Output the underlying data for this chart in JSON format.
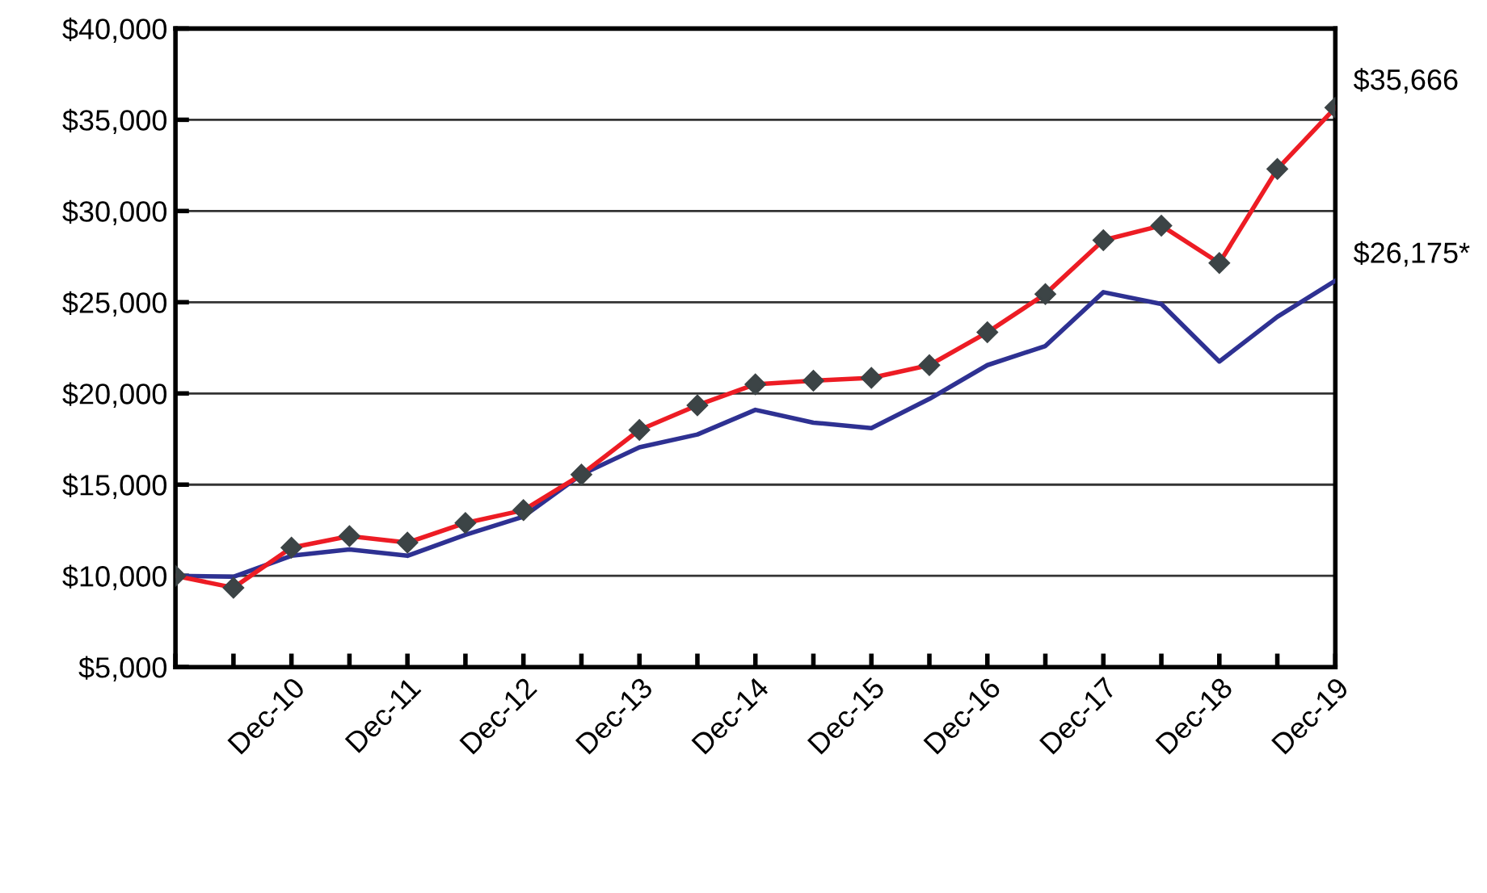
{
  "chart_data": {
    "type": "line",
    "categories": [
      null,
      null,
      "Dec-10",
      null,
      "Dec-11",
      null,
      "Dec-12",
      null,
      "Dec-13",
      null,
      "Dec-14",
      null,
      "Dec-15",
      null,
      "Dec-16",
      null,
      "Dec-17",
      null,
      "Dec-18",
      null,
      "Dec-19"
    ],
    "series": [
      {
        "color": "#2e3192",
        "marker": "none",
        "values": [
          10000,
          9950,
          11100,
          11450,
          11100,
          12250,
          13250,
          15550,
          17050,
          17750,
          19100,
          18400,
          18100,
          19700,
          21550,
          22600,
          25550,
          24900,
          21750,
          24200,
          26175
        ]
      },
      {
        "color": "#ed1c24",
        "marker": "diamond",
        "values": [
          10000,
          9350,
          11550,
          12180,
          11820,
          12900,
          13600,
          15550,
          18000,
          19350,
          20500,
          20700,
          20850,
          21550,
          23350,
          25450,
          28400,
          29200,
          27150,
          32300,
          35666
        ]
      }
    ],
    "ylim": [
      5000,
      40000
    ],
    "yticks": [
      {
        "value": 5000,
        "label": "$5,000"
      },
      {
        "value": 10000,
        "label": "$10,000"
      },
      {
        "value": 15000,
        "label": "$15,000"
      },
      {
        "value": 20000,
        "label": "$20,000"
      },
      {
        "value": 25000,
        "label": "$25,000"
      },
      {
        "value": 30000,
        "label": "$30,000"
      },
      {
        "value": 35000,
        "label": "$35,000"
      },
      {
        "value": 40000,
        "label": "$40,000"
      }
    ],
    "grid": "y",
    "line_style": "solid",
    "annotations": [
      {
        "text": "$35,666",
        "x": "Dec-19",
        "y": 35666
      },
      {
        "text": "$26,175*",
        "x": "Dec-19",
        "y": 26175
      }
    ]
  }
}
